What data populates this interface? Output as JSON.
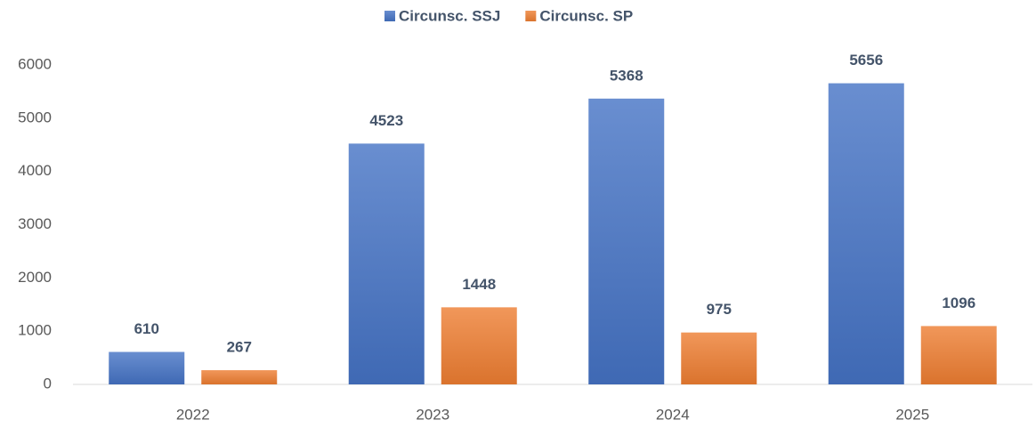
{
  "chart_data": {
    "type": "bar",
    "categories": [
      "2022",
      "2023",
      "2024",
      "2025"
    ],
    "series": [
      {
        "name": "Circunsc. SSJ",
        "color": "#4472c4",
        "values": [
          610,
          4523,
          5368,
          5656
        ]
      },
      {
        "name": "Circunsc. SP",
        "color": "#ed7d31",
        "values": [
          267,
          1448,
          975,
          1096
        ]
      }
    ],
    "ylim": [
      0,
      6000
    ],
    "yticks": [
      0,
      1000,
      2000,
      3000,
      4000,
      5000,
      6000
    ],
    "grid": false,
    "legend": "top",
    "data_labels": true
  }
}
